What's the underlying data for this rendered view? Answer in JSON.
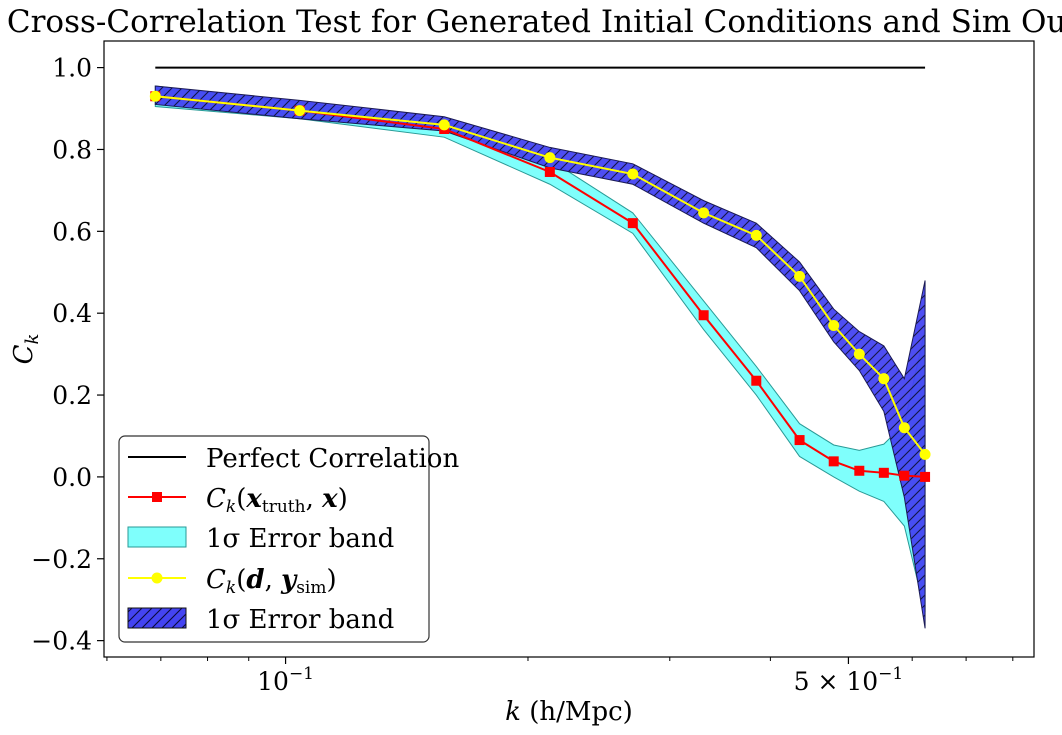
{
  "chart_data": {
    "type": "line",
    "title": "Cross-Correlation Test for Generated Initial Conditions and Sim Output",
    "xlabel": "k (h/Mpc)",
    "ylabel": "C_k",
    "xscale": "log",
    "xlim": [
      0.0595,
      0.85
    ],
    "ylim": [
      -0.44,
      1.065
    ],
    "x_ticks": [
      {
        "value": 0.1,
        "base": "10",
        "exp": "−1"
      },
      {
        "value": 0.5,
        "base": "5 × 10",
        "exp": "−1"
      }
    ],
    "y_ticks": [
      {
        "value": 1.0,
        "label": "1.0"
      },
      {
        "value": 0.8,
        "label": "0.8"
      },
      {
        "value": 0.6,
        "label": "0.6"
      },
      {
        "value": 0.4,
        "label": "0.4"
      },
      {
        "value": 0.2,
        "label": "0.2"
      },
      {
        "value": 0.0,
        "label": "0.0"
      },
      {
        "value": -0.2,
        "label": "−0.2"
      },
      {
        "value": -0.4,
        "label": "−0.4"
      }
    ],
    "x": [
      0.0689,
      0.1041,
      0.1574,
      0.2129,
      0.2699,
      0.3305,
      0.3842,
      0.4348,
      0.4794,
      0.5158,
      0.5533,
      0.5867,
      0.6225
    ],
    "series": [
      {
        "name": "Perfect Correlation",
        "style": "line",
        "color": "#000000",
        "x": [
          0.0689,
          0.6225
        ],
        "values": [
          1.0,
          1.0
        ]
      },
      {
        "name": "C_k(x_truth, x)",
        "style": "line-marker-square",
        "color": "#ff0000",
        "values": [
          0.93,
          0.895,
          0.85,
          0.745,
          0.62,
          0.395,
          0.235,
          0.09,
          0.038,
          0.015,
          0.01,
          0.003,
          0.0
        ]
      },
      {
        "name": "1σ Error band",
        "style": "band",
        "color": "#00ffff",
        "lower": [
          0.905,
          0.875,
          0.83,
          0.715,
          0.595,
          0.36,
          0.2,
          0.05,
          0.0,
          -0.035,
          -0.06,
          -0.12,
          -0.33
        ],
        "upper": [
          0.955,
          0.915,
          0.87,
          0.775,
          0.645,
          0.43,
          0.27,
          0.13,
          0.078,
          0.065,
          0.08,
          0.13,
          0.36
        ]
      },
      {
        "name": "C_k(d, y_sim)",
        "style": "line-marker-circle",
        "color": "#ffff00",
        "values": [
          0.93,
          0.895,
          0.86,
          0.78,
          0.74,
          0.645,
          0.59,
          0.49,
          0.37,
          0.3,
          0.24,
          0.12,
          0.055
        ]
      },
      {
        "name": "1σ Error band",
        "style": "band-hatched",
        "color": "#0000ff",
        "lower": [
          0.91,
          0.875,
          0.845,
          0.755,
          0.715,
          0.62,
          0.56,
          0.455,
          0.33,
          0.26,
          0.16,
          -0.05,
          -0.37
        ],
        "upper": [
          0.955,
          0.92,
          0.88,
          0.805,
          0.765,
          0.675,
          0.62,
          0.525,
          0.41,
          0.355,
          0.32,
          0.24,
          0.48
        ]
      }
    ],
    "legend": {
      "placement": "lower-left",
      "entries": [
        {
          "label": "Perfect Correlation"
        },
        {
          "label": "C_k(x_truth, x)"
        },
        {
          "label": "1σ Error band"
        },
        {
          "label": "C_k(d, y_sim)"
        },
        {
          "label": "1σ Error band"
        }
      ]
    },
    "grid": false
  }
}
